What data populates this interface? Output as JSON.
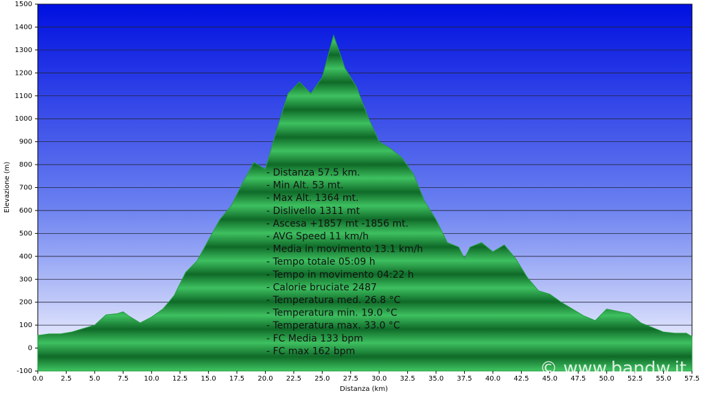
{
  "chart_data": {
    "type": "area",
    "xlabel": "Distanza  (km)",
    "ylabel": "Elevazione (m)",
    "x": [
      0,
      1,
      2,
      3,
      4,
      5,
      6,
      7,
      7.5,
      8,
      9,
      10,
      11,
      12,
      13,
      14,
      15,
      16,
      17,
      18,
      19,
      20,
      21,
      22,
      23,
      24,
      25,
      26,
      27,
      28,
      29,
      30,
      31,
      32,
      33,
      34,
      35,
      36,
      37,
      37.5,
      38,
      39,
      40,
      41,
      42,
      43,
      44,
      45,
      46,
      47,
      48,
      49,
      50,
      51,
      52,
      53,
      54,
      55,
      56,
      57,
      57.5
    ],
    "series": [
      {
        "name": "Elevazione",
        "color": "#22a040",
        "values": [
          55,
          62,
          62,
          70,
          85,
          100,
          145,
          150,
          158,
          140,
          110,
          135,
          170,
          230,
          330,
          380,
          470,
          560,
          620,
          720,
          810,
          780,
          950,
          1110,
          1160,
          1110,
          1180,
          1364,
          1220,
          1140,
          1010,
          900,
          870,
          830,
          760,
          640,
          560,
          460,
          440,
          390,
          440,
          460,
          420,
          450,
          390,
          310,
          250,
          235,
          200,
          170,
          140,
          120,
          170,
          160,
          150,
          110,
          90,
          70,
          65,
          65,
          50
        ]
      }
    ],
    "xlim": [
      0,
      57.5
    ],
    "xticks": [
      {
        "value": 0,
        "label": "0.0"
      },
      2.5,
      {
        "value": 5,
        "label": "5.0"
      },
      7.5,
      {
        "value": 10,
        "label": "10.0"
      },
      12.5,
      {
        "value": 15,
        "label": "15.0"
      },
      17.5,
      {
        "value": 20,
        "label": "20.0"
      },
      22.5,
      {
        "value": 25,
        "label": "25.0"
      },
      27.5,
      {
        "value": 30,
        "label": "30.0"
      },
      32.5,
      {
        "value": 35,
        "label": "35.0"
      },
      37.5,
      {
        "value": 40,
        "label": "40.0"
      },
      42.5,
      {
        "value": 45,
        "label": "45.0"
      },
      47.5,
      {
        "value": 50,
        "label": "50.0"
      },
      52.5,
      {
        "value": 55,
        "label": "55.0"
      },
      57.5
    ],
    "ylim": [
      -100,
      1500
    ],
    "yticks": [
      -100,
      0,
      100,
      200,
      300,
      400,
      500,
      600,
      700,
      800,
      900,
      1000,
      1100,
      1200,
      1300,
      1400,
      1500
    ],
    "grid": true,
    "annotations": [
      "- Distanza 57.5 km.",
      "- Min Alt. 53 mt.",
      "- Max Alt. 1364 mt.",
      "- Dislivello 1311 mt",
      "- Ascesa +1857 mt -1856 mt.",
      "- AVG Speed 11 km/h",
      "- Media in movimento 13.1 km/h",
      "- Tempo totale 05:09 h",
      "- Tempo in movimento 04:22 h",
      "- Calorie bruciate 2487",
      "- Temperatura med. 26.8 °C",
      "- Temperatura min. 19.0 °C",
      "- Temperatura max. 33.0 °C",
      "- FC Media 133 bpm",
      "- FC max 162 bpm"
    ],
    "watermark": "© www.bandw.it"
  }
}
